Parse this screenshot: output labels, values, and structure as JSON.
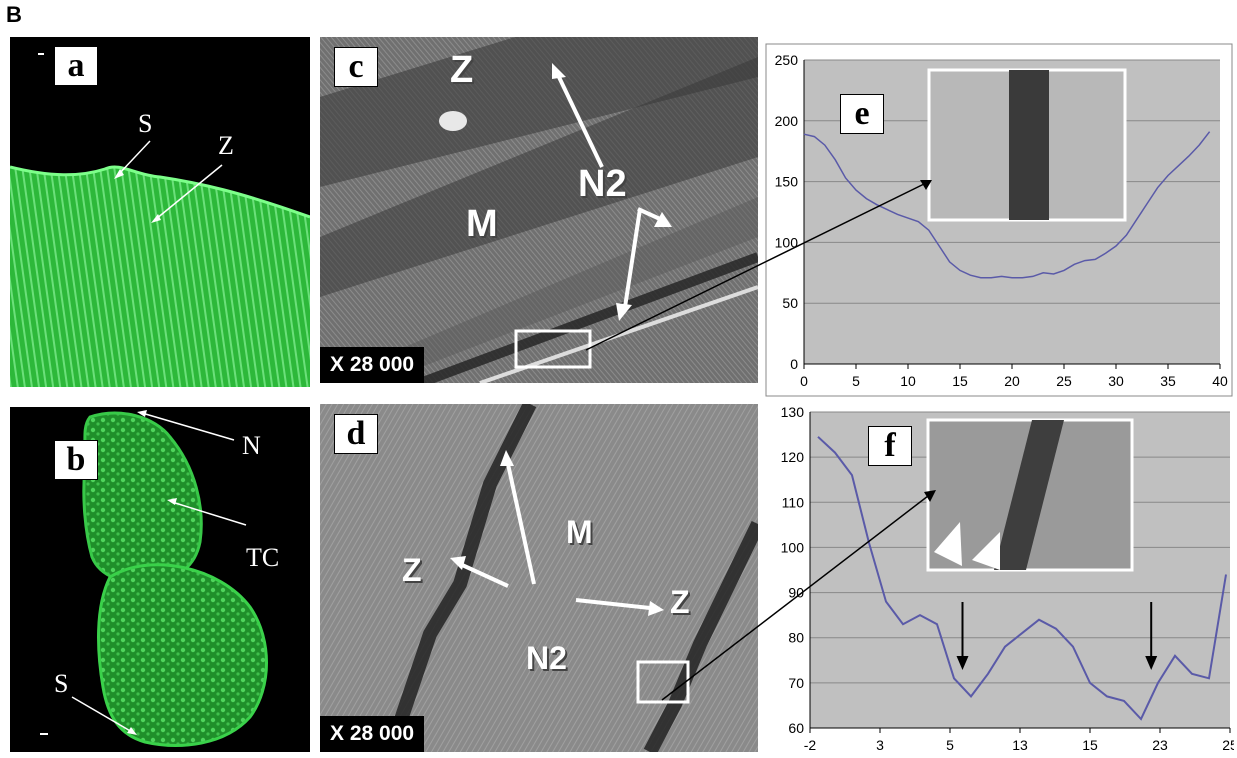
{
  "figure_label": "B",
  "panels": {
    "a": {
      "letter": "a",
      "annotations": [
        "S",
        "Z"
      ]
    },
    "b": {
      "letter": "b",
      "annotations": [
        "N",
        "TC",
        "S"
      ]
    },
    "c": {
      "letter": "c",
      "annotations": [
        "Z",
        "N2",
        "M"
      ],
      "magnification": "X 28 000"
    },
    "d": {
      "letter": "d",
      "annotations": [
        "M",
        "Z",
        "Z",
        "N2"
      ],
      "magnification": "X 28 000"
    },
    "e": {
      "letter": "e"
    },
    "f": {
      "letter": "f"
    }
  },
  "colors": {
    "fluorescence": "#2fbf3a",
    "plot_bg": "#c0c0c0",
    "line": "#5a5aa8",
    "em_gray": "#8a8a8a"
  },
  "chart_data": [
    {
      "id": "e",
      "type": "line",
      "x_ticks": [
        "0",
        "5",
        "10",
        "15",
        "20",
        "25",
        "30",
        "35",
        "40"
      ],
      "y_ticks": [
        "0",
        "50",
        "100",
        "150",
        "200",
        "250"
      ],
      "xlim": [
        0,
        40
      ],
      "ylim": [
        0,
        250
      ],
      "grid": true,
      "series": [
        {
          "x": [
            0,
            1,
            2,
            3,
            4,
            5,
            6,
            7,
            8,
            9,
            10,
            11,
            12,
            13,
            14,
            15,
            16,
            17,
            18,
            19,
            20,
            21,
            22,
            23,
            24,
            25,
            26,
            27,
            28,
            29,
            30,
            31,
            32,
            33,
            34,
            35,
            36,
            37,
            38,
            39
          ],
          "y": [
            189,
            187,
            180,
            168,
            153,
            143,
            136,
            131,
            127,
            123,
            120,
            117,
            110,
            97,
            84,
            77,
            73,
            71,
            71,
            72,
            71,
            71,
            72,
            75,
            74,
            77,
            82,
            85,
            86,
            91,
            97,
            106,
            119,
            132,
            145,
            155,
            163,
            171,
            180,
            191
          ]
        }
      ]
    },
    {
      "id": "f",
      "type": "line",
      "x_ticks": [
        "-2",
        "3",
        "5",
        "13",
        "15",
        "23",
        "25"
      ],
      "y_ticks": [
        "60",
        "70",
        "80",
        "90",
        "100",
        "110",
        "120",
        "130"
      ],
      "ylim": [
        60,
        130
      ],
      "grid": true,
      "series": [
        {
          "x": [
            0,
            1,
            2,
            3,
            4,
            5,
            6,
            7,
            8,
            9,
            10,
            11,
            12,
            13,
            14,
            15,
            16,
            17,
            18,
            19,
            20,
            21,
            22,
            23,
            24
          ],
          "y": [
            124.5,
            121,
            116,
            101,
            88,
            83,
            85,
            83,
            71,
            67,
            72,
            78,
            81,
            84,
            82,
            78,
            70,
            67,
            66,
            62,
            70,
            76,
            72,
            71,
            94
          ]
        }
      ],
      "arrows_at_index": [
        8.5,
        19.6
      ]
    }
  ]
}
